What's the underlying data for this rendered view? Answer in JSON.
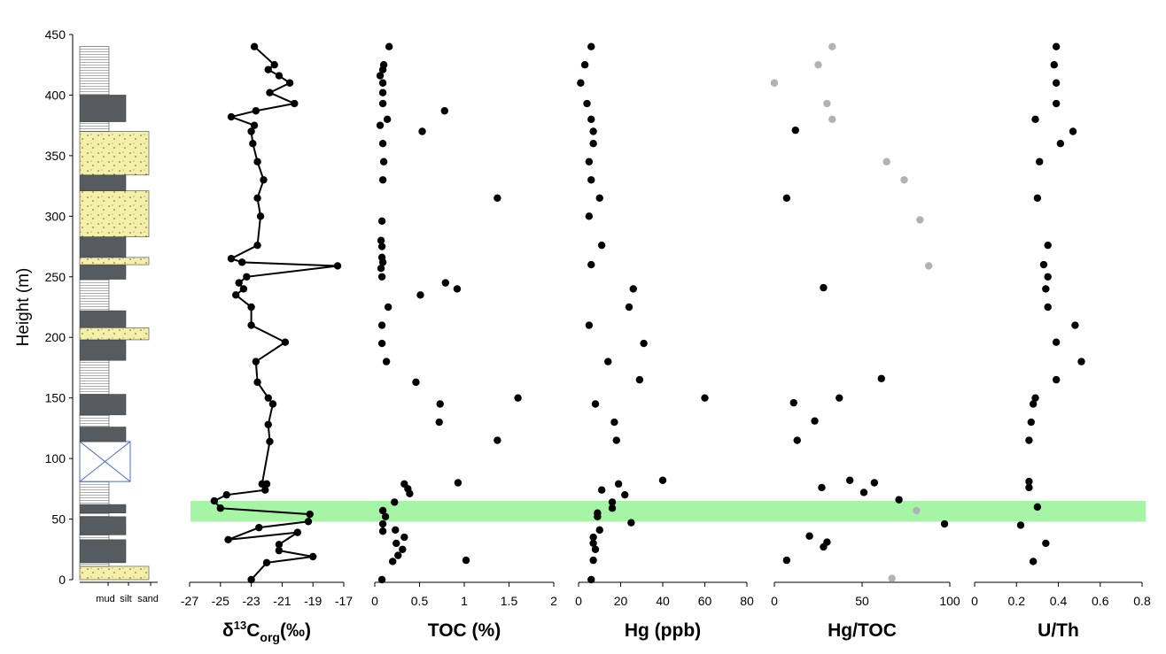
{
  "figure": {
    "y_axis": {
      "label": "Height (m)",
      "range": [
        0,
        450
      ],
      "ticks": [
        0,
        50,
        100,
        150,
        200,
        250,
        300,
        350,
        400,
        450
      ]
    },
    "highlight_band": {
      "from": 48,
      "to": 65,
      "color": "#a6f5a6"
    },
    "lithology_labels": [
      "mud",
      "silt",
      "sand"
    ],
    "colors": {
      "mud": "#555b5f",
      "sand": "#f5f0a8",
      "gap": "#4a6fd1",
      "point": "#000000",
      "point_grey": "#b0b3b6"
    }
  },
  "lithology_column": [
    {
      "from": 0,
      "to": 11,
      "type": "sand"
    },
    {
      "from": 11,
      "to": 14,
      "type": "silt"
    },
    {
      "from": 14,
      "to": 33,
      "type": "mud"
    },
    {
      "from": 33,
      "to": 37,
      "type": "silt"
    },
    {
      "from": 37,
      "to": 52,
      "type": "mud"
    },
    {
      "from": 52,
      "to": 55,
      "type": "silt"
    },
    {
      "from": 55,
      "to": 62,
      "type": "mud"
    },
    {
      "from": 62,
      "to": 81,
      "type": "silt"
    },
    {
      "from": 81,
      "to": 114,
      "type": "gap"
    },
    {
      "from": 114,
      "to": 126,
      "type": "mud"
    },
    {
      "from": 126,
      "to": 136,
      "type": "silt"
    },
    {
      "from": 136,
      "to": 153,
      "type": "mud"
    },
    {
      "from": 153,
      "to": 181,
      "type": "silt"
    },
    {
      "from": 181,
      "to": 198,
      "type": "mud"
    },
    {
      "from": 198,
      "to": 208,
      "type": "sand"
    },
    {
      "from": 208,
      "to": 222,
      "type": "mud"
    },
    {
      "from": 222,
      "to": 248,
      "type": "silt"
    },
    {
      "from": 248,
      "to": 260,
      "type": "mud"
    },
    {
      "from": 260,
      "to": 266,
      "type": "sand"
    },
    {
      "from": 266,
      "to": 283,
      "type": "mud"
    },
    {
      "from": 283,
      "to": 321,
      "type": "sand"
    },
    {
      "from": 321,
      "to": 334,
      "type": "mud"
    },
    {
      "from": 334,
      "to": 370,
      "type": "sand"
    },
    {
      "from": 370,
      "to": 378,
      "type": "silt"
    },
    {
      "from": 378,
      "to": 400,
      "type": "mud"
    },
    {
      "from": 400,
      "to": 440,
      "type": "silt"
    }
  ],
  "chart_data": [
    {
      "type": "line",
      "xlabel": "δ13Corg(‰)",
      "xlabel_parts": [
        "δ",
        "13",
        "C",
        "org",
        "(‰)"
      ],
      "xlim": [
        -27,
        -17
      ],
      "xticks": [
        "-27",
        "-25",
        "-23",
        "-21",
        "-19",
        "-17"
      ],
      "xtick_values": [
        -27,
        -25,
        -23,
        -21,
        -19,
        -17
      ],
      "points": [
        {
          "x": -23.0,
          "y": 0
        },
        {
          "x": -22.0,
          "y": 14
        },
        {
          "x": -19.0,
          "y": 19
        },
        {
          "x": -21.2,
          "y": 24
        },
        {
          "x": -21.2,
          "y": 29
        },
        {
          "x": -20.0,
          "y": 39
        },
        {
          "x": -24.5,
          "y": 33
        },
        {
          "x": -22.5,
          "y": 43
        },
        {
          "x": -19.3,
          "y": 48
        },
        {
          "x": -19.2,
          "y": 54
        },
        {
          "x": -25.0,
          "y": 59
        },
        {
          "x": -25.4,
          "y": 65
        },
        {
          "x": -24.6,
          "y": 70
        },
        {
          "x": -22.1,
          "y": 74
        },
        {
          "x": -22.0,
          "y": 79
        },
        {
          "x": -22.3,
          "y": 79
        },
        {
          "x": -21.8,
          "y": 114
        },
        {
          "x": -21.9,
          "y": 128
        },
        {
          "x": -21.6,
          "y": 145
        },
        {
          "x": -21.9,
          "y": 150
        },
        {
          "x": -22.6,
          "y": 163
        },
        {
          "x": -22.7,
          "y": 180
        },
        {
          "x": -20.8,
          "y": 196
        },
        {
          "x": -23.0,
          "y": 210
        },
        {
          "x": -23.0,
          "y": 225
        },
        {
          "x": -24.0,
          "y": 235
        },
        {
          "x": -23.5,
          "y": 240
        },
        {
          "x": -23.8,
          "y": 245
        },
        {
          "x": -23.3,
          "y": 250
        },
        {
          "x": -17.4,
          "y": 259
        },
        {
          "x": -23.6,
          "y": 262
        },
        {
          "x": -24.3,
          "y": 265
        },
        {
          "x": -22.6,
          "y": 276
        },
        {
          "x": -22.4,
          "y": 300
        },
        {
          "x": -22.6,
          "y": 315
        },
        {
          "x": -22.2,
          "y": 330
        },
        {
          "x": -22.6,
          "y": 345
        },
        {
          "x": -22.9,
          "y": 360
        },
        {
          "x": -23.0,
          "y": 370
        },
        {
          "x": -22.8,
          "y": 375
        },
        {
          "x": -24.3,
          "y": 382
        },
        {
          "x": -22.7,
          "y": 387
        },
        {
          "x": -20.2,
          "y": 393
        },
        {
          "x": -21.8,
          "y": 402
        },
        {
          "x": -20.5,
          "y": 410
        },
        {
          "x": -21.2,
          "y": 416
        },
        {
          "x": -21.9,
          "y": 421
        },
        {
          "x": -21.5,
          "y": 425
        },
        {
          "x": -22.8,
          "y": 440
        }
      ]
    },
    {
      "type": "scatter",
      "xlabel": "TOC (%)",
      "xlim": [
        0,
        2
      ],
      "xticks": [
        "0",
        "0.5",
        "1",
        "1.5",
        "2"
      ],
      "xtick_values": [
        0,
        0.5,
        1,
        1.5,
        2
      ],
      "points": [
        {
          "x": 0.08,
          "y": 0
        },
        {
          "x": 0.2,
          "y": 15
        },
        {
          "x": 0.26,
          "y": 20
        },
        {
          "x": 1.02,
          "y": 16
        },
        {
          "x": 0.31,
          "y": 25
        },
        {
          "x": 0.24,
          "y": 30
        },
        {
          "x": 0.33,
          "y": 35
        },
        {
          "x": 0.09,
          "y": 40
        },
        {
          "x": 0.23,
          "y": 41
        },
        {
          "x": 0.09,
          "y": 46
        },
        {
          "x": 0.12,
          "y": 52
        },
        {
          "x": 0.09,
          "y": 57
        },
        {
          "x": 0.22,
          "y": 64
        },
        {
          "x": 0.39,
          "y": 71
        },
        {
          "x": 0.37,
          "y": 75
        },
        {
          "x": 0.33,
          "y": 79
        },
        {
          "x": 0.93,
          "y": 80
        },
        {
          "x": 1.37,
          "y": 115
        },
        {
          "x": 0.72,
          "y": 130
        },
        {
          "x": 0.73,
          "y": 145
        },
        {
          "x": 1.6,
          "y": 150
        },
        {
          "x": 0.46,
          "y": 163
        },
        {
          "x": 0.13,
          "y": 180
        },
        {
          "x": 0.08,
          "y": 195
        },
        {
          "x": 0.08,
          "y": 210
        },
        {
          "x": 0.15,
          "y": 225
        },
        {
          "x": 0.51,
          "y": 235
        },
        {
          "x": 0.92,
          "y": 240
        },
        {
          "x": 0.79,
          "y": 245
        },
        {
          "x": 0.08,
          "y": 250
        },
        {
          "x": 0.07,
          "y": 257
        },
        {
          "x": 0.09,
          "y": 262
        },
        {
          "x": 0.08,
          "y": 266
        },
        {
          "x": 0.08,
          "y": 275
        },
        {
          "x": 0.07,
          "y": 280
        },
        {
          "x": 0.08,
          "y": 296
        },
        {
          "x": 1.37,
          "y": 315
        },
        {
          "x": 0.09,
          "y": 330
        },
        {
          "x": 0.1,
          "y": 345
        },
        {
          "x": 0.09,
          "y": 360
        },
        {
          "x": 0.53,
          "y": 370
        },
        {
          "x": 0.06,
          "y": 375
        },
        {
          "x": 0.14,
          "y": 380
        },
        {
          "x": 0.78,
          "y": 387
        },
        {
          "x": 0.09,
          "y": 393
        },
        {
          "x": 0.09,
          "y": 402
        },
        {
          "x": 0.09,
          "y": 410
        },
        {
          "x": 0.06,
          "y": 416
        },
        {
          "x": 0.09,
          "y": 421
        },
        {
          "x": 0.1,
          "y": 425
        },
        {
          "x": 0.16,
          "y": 440
        }
      ]
    },
    {
      "type": "scatter",
      "xlabel": "Hg (ppb)",
      "xlim": [
        0,
        80
      ],
      "xticks": [
        "0",
        "20",
        "40",
        "60",
        "80"
      ],
      "xtick_values": [
        0,
        20,
        40,
        60,
        80
      ],
      "points": [
        {
          "x": 6,
          "y": 0
        },
        {
          "x": 7,
          "y": 16
        },
        {
          "x": 8,
          "y": 25
        },
        {
          "x": 7,
          "y": 30
        },
        {
          "x": 7,
          "y": 35
        },
        {
          "x": 10,
          "y": 41
        },
        {
          "x": 25,
          "y": 47
        },
        {
          "x": 9,
          "y": 52
        },
        {
          "x": 9,
          "y": 55
        },
        {
          "x": 16,
          "y": 59
        },
        {
          "x": 16,
          "y": 64
        },
        {
          "x": 22,
          "y": 70
        },
        {
          "x": 11,
          "y": 74
        },
        {
          "x": 19,
          "y": 79
        },
        {
          "x": 40,
          "y": 82
        },
        {
          "x": 18,
          "y": 115
        },
        {
          "x": 17,
          "y": 130
        },
        {
          "x": 8,
          "y": 145
        },
        {
          "x": 60,
          "y": 150
        },
        {
          "x": 29,
          "y": 165
        },
        {
          "x": 14,
          "y": 180
        },
        {
          "x": 31,
          "y": 195
        },
        {
          "x": 5,
          "y": 210
        },
        {
          "x": 24,
          "y": 225
        },
        {
          "x": 26,
          "y": 240
        },
        {
          "x": 6,
          "y": 260
        },
        {
          "x": 11,
          "y": 276
        },
        {
          "x": 5,
          "y": 300
        },
        {
          "x": 10,
          "y": 315
        },
        {
          "x": 6,
          "y": 330
        },
        {
          "x": 5,
          "y": 345
        },
        {
          "x": 7,
          "y": 360
        },
        {
          "x": 7,
          "y": 370
        },
        {
          "x": 6,
          "y": 380
        },
        {
          "x": 4,
          "y": 393
        },
        {
          "x": 1,
          "y": 410
        },
        {
          "x": 3,
          "y": 425
        },
        {
          "x": 6,
          "y": 440
        }
      ]
    },
    {
      "type": "scatter",
      "xlabel": "Hg/TOC",
      "xlim": [
        0,
        100
      ],
      "xticks": [
        "0",
        "50",
        "100"
      ],
      "xtick_values": [
        0,
        50,
        100
      ],
      "points": [
        {
          "x": 7,
          "y": 16
        },
        {
          "x": 28,
          "y": 27
        },
        {
          "x": 30,
          "y": 31
        },
        {
          "x": 20,
          "y": 36
        },
        {
          "x": 97,
          "y": 46
        },
        {
          "x": 81,
          "y": 57,
          "grey": true
        },
        {
          "x": 71,
          "y": 66
        },
        {
          "x": 51,
          "y": 72
        },
        {
          "x": 27,
          "y": 76
        },
        {
          "x": 57,
          "y": 80
        },
        {
          "x": 43,
          "y": 82
        },
        {
          "x": 13,
          "y": 115
        },
        {
          "x": 23,
          "y": 131
        },
        {
          "x": 11,
          "y": 146
        },
        {
          "x": 37,
          "y": 150
        },
        {
          "x": 61,
          "y": 166
        },
        {
          "x": 28,
          "y": 241
        },
        {
          "x": 7,
          "y": 315
        },
        {
          "x": 12,
          "y": 371
        },
        {
          "x": 88,
          "y": 259,
          "grey": true
        },
        {
          "x": 83,
          "y": 297,
          "grey": true
        },
        {
          "x": 74,
          "y": 330,
          "grey": true
        },
        {
          "x": 64,
          "y": 345,
          "grey": true
        },
        {
          "x": 33,
          "y": 380,
          "grey": true
        },
        {
          "x": 30,
          "y": 393,
          "grey": true
        },
        {
          "x": 0,
          "y": 410,
          "grey": true
        },
        {
          "x": 25,
          "y": 425,
          "grey": true
        },
        {
          "x": 33,
          "y": 440,
          "grey": true
        },
        {
          "x": 67,
          "y": 1,
          "grey": true
        }
      ]
    },
    {
      "type": "scatter",
      "xlabel": "U/Th",
      "xlim": [
        0,
        0.8
      ],
      "xticks": [
        "0",
        "0.2",
        "0.4",
        "0.6",
        "0.8"
      ],
      "xtick_values": [
        0,
        0.2,
        0.4,
        0.6,
        0.8
      ],
      "points": [
        {
          "x": 0.28,
          "y": 15
        },
        {
          "x": 0.34,
          "y": 30
        },
        {
          "x": 0.22,
          "y": 45
        },
        {
          "x": 0.3,
          "y": 60
        },
        {
          "x": 0.26,
          "y": 76
        },
        {
          "x": 0.26,
          "y": 81
        },
        {
          "x": 0.26,
          "y": 115
        },
        {
          "x": 0.27,
          "y": 130
        },
        {
          "x": 0.28,
          "y": 145
        },
        {
          "x": 0.29,
          "y": 150
        },
        {
          "x": 0.39,
          "y": 165
        },
        {
          "x": 0.51,
          "y": 180
        },
        {
          "x": 0.39,
          "y": 196
        },
        {
          "x": 0.48,
          "y": 210
        },
        {
          "x": 0.35,
          "y": 225
        },
        {
          "x": 0.34,
          "y": 240
        },
        {
          "x": 0.35,
          "y": 250
        },
        {
          "x": 0.33,
          "y": 260
        },
        {
          "x": 0.35,
          "y": 276
        },
        {
          "x": 0.3,
          "y": 315
        },
        {
          "x": 0.31,
          "y": 345
        },
        {
          "x": 0.41,
          "y": 360
        },
        {
          "x": 0.47,
          "y": 370
        },
        {
          "x": 0.29,
          "y": 380
        },
        {
          "x": 0.39,
          "y": 393
        },
        {
          "x": 0.39,
          "y": 410
        },
        {
          "x": 0.38,
          "y": 425
        },
        {
          "x": 0.39,
          "y": 440
        }
      ]
    }
  ]
}
